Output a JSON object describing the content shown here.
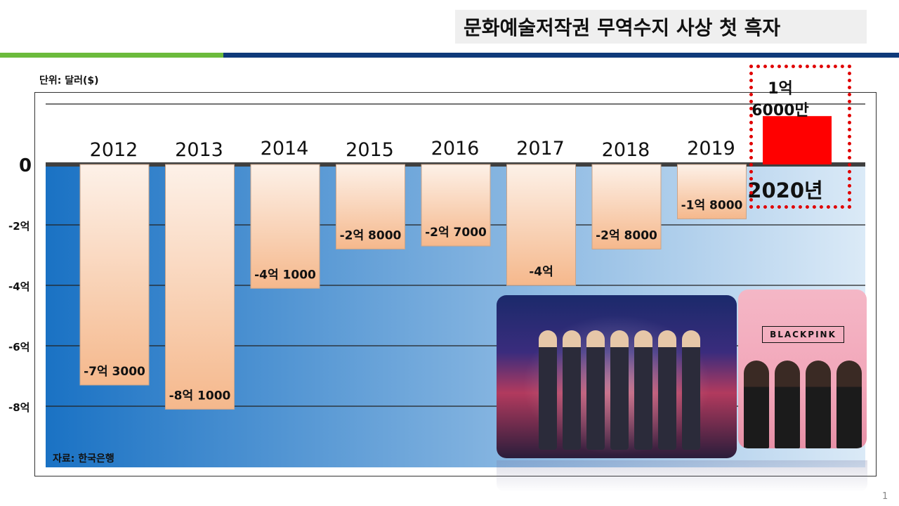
{
  "title": "문화예술저작권 무역수지 사상 첫 흑자",
  "unit_label": "단위: 달러($)",
  "source_label": "자료: 한국은행",
  "page_number": "1",
  "colors": {
    "negative_bar_top": "#fdf1e8",
    "negative_bar_bottom": "#f5b88c",
    "positive_bar": "#ff0000",
    "highlight_border": "#e00000",
    "background_left": "#1a72c4",
    "background_right": "#dbeaf7",
    "title_bar_green": "#6cbb3c",
    "title_bar_navy": "#0f3a7a"
  },
  "images": [
    {
      "name": "bts-group-photo"
    },
    {
      "name": "blackpink-group-photo",
      "logo_text": "BLACKPINK"
    }
  ],
  "chart_data": {
    "type": "bar",
    "categories": [
      "2012",
      "2013",
      "2014",
      "2015",
      "2016",
      "2017",
      "2018",
      "2019",
      "2020년"
    ],
    "values": [
      -73000000,
      -81000000,
      -41000000,
      -28000000,
      -27000000,
      -40000000,
      -28000000,
      -18000000,
      16000000
    ],
    "value_labels": [
      "-7억 3000",
      "-8억 1000",
      "-4억 1000",
      "-2억 8000",
      "-2억 7000",
      "-4억",
      "-2억 8000",
      "-1억 8000",
      "1억\n6000만"
    ],
    "ylim": [
      -100000000,
      20000000
    ],
    "y_ticks": [
      0,
      -20000000,
      -40000000,
      -60000000,
      -80000000
    ],
    "y_tick_labels": [
      "0",
      "-2억",
      "-4억",
      "-6억",
      "-8억"
    ],
    "gridlines": [
      20000000,
      -20000000,
      -40000000,
      -60000000,
      -80000000
    ],
    "grid": true,
    "title": "",
    "xlabel": "",
    "ylabel": "",
    "highlighted_category": "2020년"
  }
}
